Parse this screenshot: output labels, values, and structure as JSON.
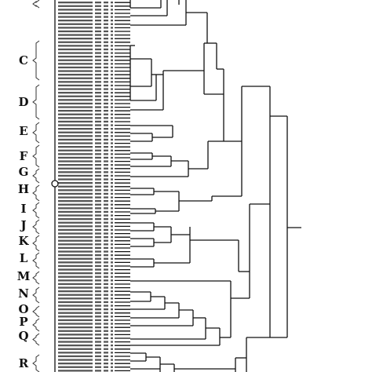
{
  "figure": {
    "group_labels": [
      "C",
      "D",
      "E",
      "F",
      "G",
      "H",
      "I",
      "J",
      "K",
      "L",
      "M",
      "N",
      "O",
      "P",
      "Q",
      "R"
    ],
    "icons": [
      "group-bracket",
      "strain-label-rows",
      "root-marker-circle"
    ],
    "colors": {
      "line": "#111111",
      "text": "#111111",
      "rows": "#555555",
      "background": "#ffffff"
    }
  }
}
